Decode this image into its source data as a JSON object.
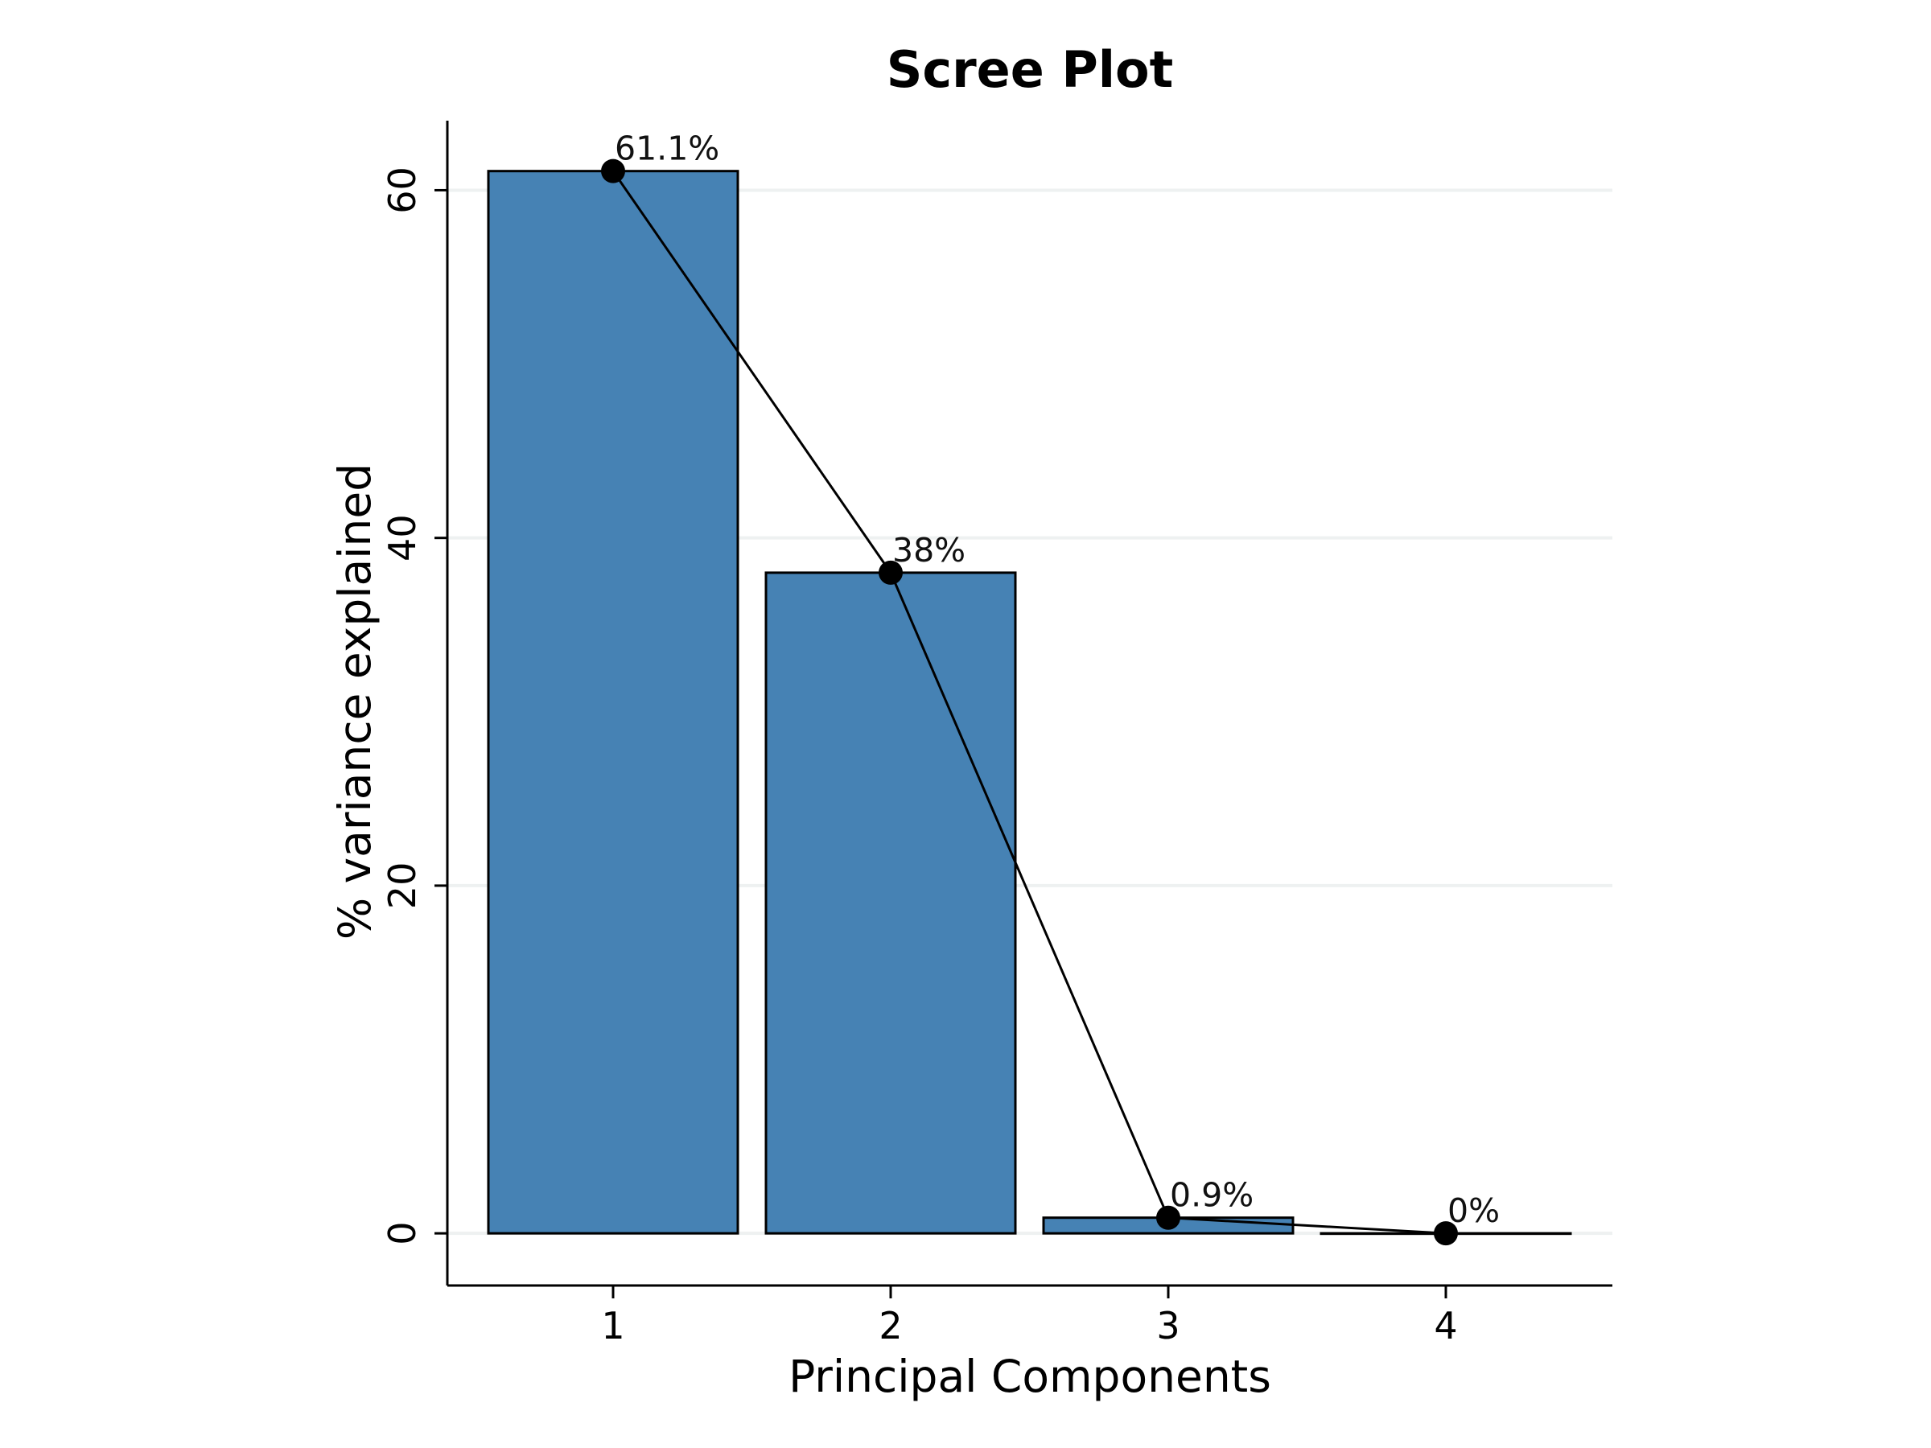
{
  "chart_data": {
    "type": "bar",
    "title": "Scree Plot",
    "xlabel": "Principal Components",
    "ylabel": "% variance explained",
    "categories": [
      "1",
      "2",
      "3",
      "4"
    ],
    "values": [
      61.1,
      38.0,
      0.9,
      0.0
    ],
    "data_labels": [
      "61.1%",
      "38%",
      "0.9%",
      "0%"
    ],
    "yticks": [
      0,
      20,
      40,
      60
    ],
    "ylim": [
      -3,
      64
    ],
    "grid": "horizontal",
    "overlay": "line-with-points",
    "colors": {
      "bar": "#4682b4",
      "outline": "#000000",
      "line": "#000000",
      "grid": "#eef1f1"
    }
  }
}
